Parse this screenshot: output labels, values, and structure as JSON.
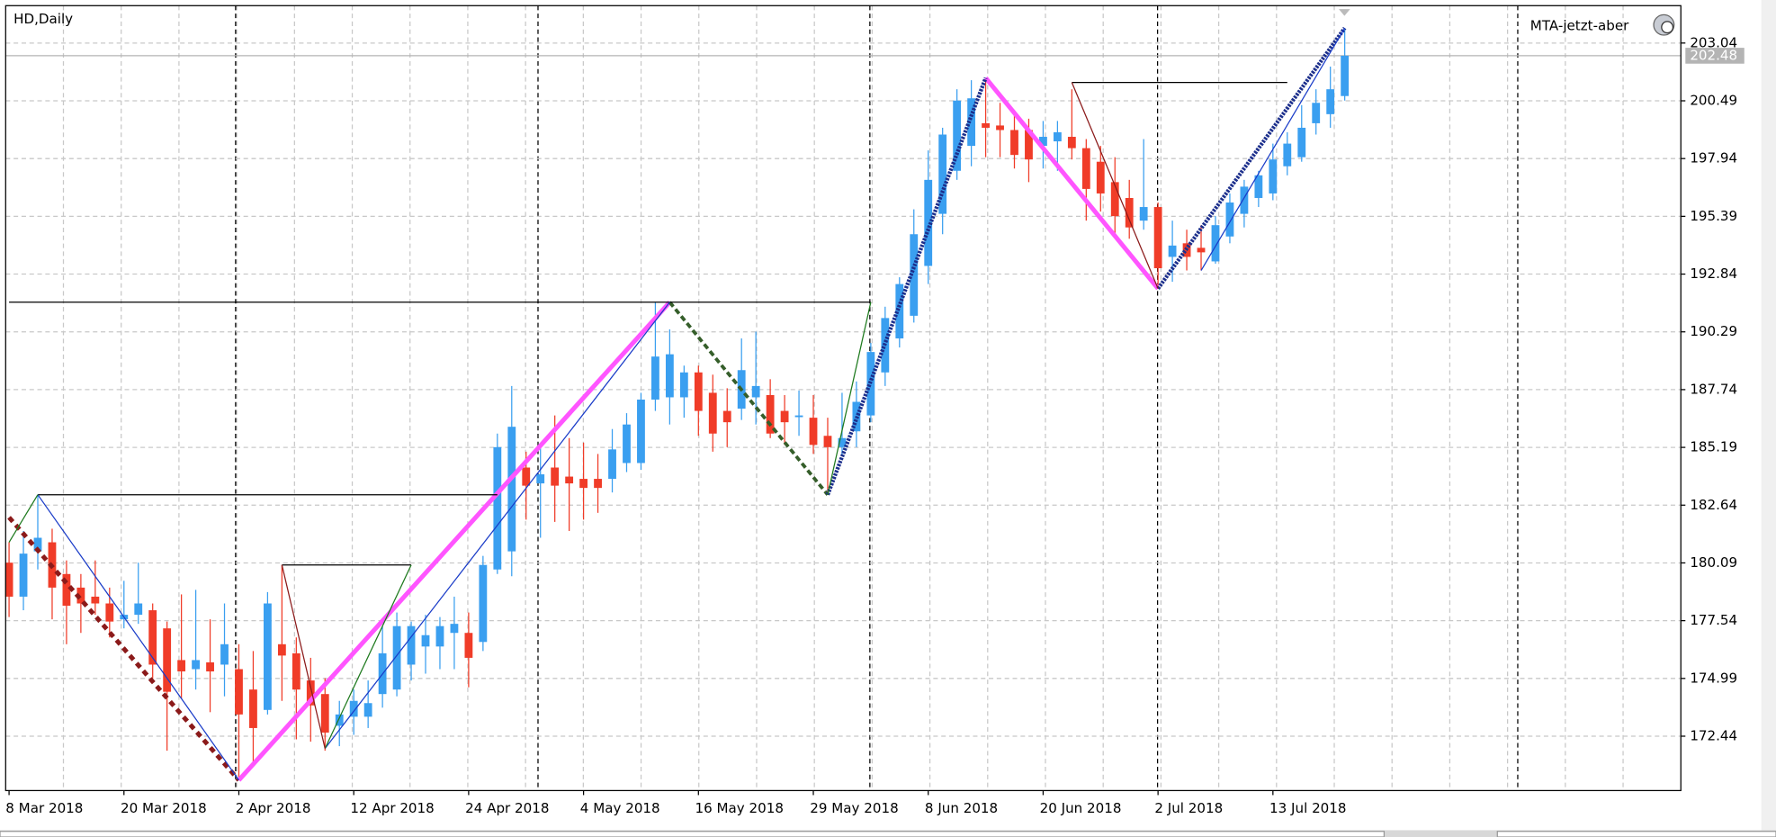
{
  "chart_data": {
    "type": "candlestick",
    "title": "HD,Daily",
    "indicator": "MTA-jetzt-aber",
    "categories": [
      "8 Mar 2018",
      null,
      null,
      null,
      null,
      null,
      null,
      null,
      "20 Mar 2018",
      null,
      null,
      null,
      null,
      null,
      null,
      null,
      "2 Apr 2018",
      null,
      null,
      null,
      null,
      null,
      null,
      null,
      "12 Apr 2018",
      null,
      null,
      null,
      null,
      null,
      null,
      null,
      "24 Apr 2018",
      null,
      null,
      null,
      null,
      null,
      null,
      null,
      "4 May 2018",
      null,
      null,
      null,
      null,
      null,
      null,
      null,
      "16 May 2018",
      null,
      null,
      null,
      null,
      null,
      null,
      null,
      "29 May 2018",
      null,
      null,
      null,
      null,
      null,
      null,
      null,
      "8 Jun 2018",
      null,
      null,
      null,
      null,
      null,
      null,
      null,
      "20 Jun 2018",
      null,
      null,
      null,
      null,
      null,
      null,
      null,
      "2 Jul 2018",
      null,
      null,
      null,
      null,
      null,
      null,
      null,
      "13 Jul 2018",
      null,
      null,
      null,
      null,
      null
    ],
    "open": [
      180.1,
      178.6,
      180.6,
      181.0,
      179.6,
      179.0,
      178.6,
      178.3,
      177.6,
      177.8,
      178.0,
      177.2,
      175.8,
      175.4,
      175.7,
      175.6,
      175.4,
      174.5,
      173.6,
      176.5,
      176.1,
      174.9,
      174.3,
      172.9,
      173.3,
      173.3,
      174.3,
      174.5,
      175.6,
      176.4,
      176.4,
      177.0,
      177.0,
      176.6,
      179.8,
      180.6,
      184.3,
      183.6,
      184.3,
      183.9,
      183.8,
      183.8,
      183.8,
      184.5,
      184.5,
      187.3,
      187.4,
      187.4,
      188.5,
      187.6,
      186.8,
      186.9,
      187.4,
      187.5,
      186.8,
      186.6,
      186.5,
      185.7,
      185.2,
      185.9,
      186.6,
      188.5,
      190.0,
      191.0,
      193.2,
      195.5,
      197.4,
      198.5,
      199.5,
      199.4,
      199.2,
      199.2,
      198.5,
      198.7,
      198.9,
      198.4,
      197.8,
      196.9,
      196.2,
      195.2,
      195.8,
      193.6,
      194.2,
      194.0,
      193.4,
      194.5,
      195.5,
      196.2,
      196.4,
      197.6,
      198.0,
      199.5,
      199.9,
      200.7
    ],
    "high": [
      181.0,
      181.5,
      183.1,
      181.6,
      180.2,
      179.6,
      180.2,
      179.0,
      179.3,
      180.1,
      178.3,
      177.5,
      178.7,
      178.9,
      177.6,
      178.3,
      176.5,
      176.2,
      178.8,
      180.0,
      176.8,
      175.9,
      175.0,
      174.0,
      174.5,
      174.9,
      177.3,
      177.9,
      177.5,
      177.8,
      177.7,
      178.6,
      177.9,
      180.4,
      185.8,
      187.9,
      185.0,
      185.2,
      186.6,
      185.6,
      185.4,
      184.9,
      186.0,
      186.7,
      187.6,
      191.6,
      190.4,
      188.8,
      188.8,
      188.4,
      187.8,
      190.0,
      190.3,
      188.2,
      187.5,
      187.7,
      187.5,
      186.5,
      187.6,
      188.1,
      189.8,
      191.4,
      192.7,
      195.7,
      198.3,
      199.3,
      201.0,
      201.4,
      201.5,
      200.4,
      199.9,
      199.7,
      199.6,
      199.6,
      201.0,
      198.8,
      198.5,
      198.0,
      197.0,
      198.8,
      196.0,
      195.2,
      194.8,
      195.0,
      195.4,
      196.4,
      197.0,
      197.4,
      198.6,
      199.1,
      200.3,
      201.0,
      202.0,
      203.7
    ],
    "low": [
      177.7,
      178.0,
      179.8,
      177.6,
      176.5,
      177.0,
      177.8,
      176.8,
      177.2,
      177.4,
      175.0,
      171.8,
      174.1,
      174.5,
      173.5,
      174.2,
      170.5,
      171.3,
      173.4,
      174.0,
      172.3,
      172.2,
      171.8,
      172.0,
      172.5,
      172.8,
      173.7,
      174.2,
      174.9,
      175.2,
      175.4,
      175.4,
      174.6,
      176.2,
      179.6,
      179.5,
      182.0,
      181.2,
      181.9,
      181.5,
      182.0,
      182.3,
      183.2,
      184.1,
      184.2,
      186.8,
      186.2,
      186.5,
      185.7,
      185.0,
      185.2,
      186.4,
      186.2,
      185.6,
      185.3,
      185.7,
      184.9,
      183.1,
      184.8,
      185.2,
      186.3,
      187.9,
      189.6,
      190.7,
      192.4,
      194.6,
      197.0,
      197.6,
      198.0,
      198.0,
      197.5,
      196.9,
      197.5,
      197.4,
      197.9,
      195.2,
      195.6,
      194.6,
      194.4,
      194.8,
      192.2,
      192.5,
      193.0,
      193.0,
      193.3,
      194.2,
      194.9,
      195.8,
      196.1,
      197.2,
      197.8,
      199.0,
      199.3,
      200.5
    ],
    "close": [
      178.6,
      180.5,
      181.2,
      179.0,
      178.2,
      178.3,
      178.3,
      177.5,
      177.8,
      178.3,
      175.6,
      174.4,
      175.3,
      175.8,
      175.3,
      176.5,
      173.4,
      172.8,
      178.3,
      176.0,
      174.5,
      173.8,
      172.6,
      173.4,
      174.0,
      173.9,
      176.1,
      177.3,
      177.3,
      176.9,
      177.3,
      177.4,
      175.9,
      180.0,
      185.2,
      186.1,
      183.5,
      184.0,
      183.5,
      183.6,
      183.4,
      183.4,
      185.1,
      186.2,
      187.3,
      189.2,
      189.3,
      188.5,
      186.8,
      185.8,
      186.3,
      188.6,
      187.9,
      185.8,
      186.3,
      186.6,
      185.3,
      185.2,
      185.6,
      187.2,
      189.4,
      190.9,
      192.4,
      194.6,
      197.0,
      199.0,
      200.5,
      200.6,
      199.3,
      199.2,
      198.1,
      197.9,
      198.9,
      199.1,
      198.4,
      196.6,
      196.4,
      195.4,
      194.9,
      195.8,
      193.1,
      194.1,
      193.6,
      193.8,
      195.0,
      196.0,
      196.7,
      197.2,
      197.9,
      198.6,
      199.3,
      200.4,
      201.0,
      202.48
    ],
    "up_color": "#3a9ff0",
    "down_color": "#f03c28",
    "ylim": [
      170.04,
      204.69
    ],
    "yticks": [
      172.44,
      174.99,
      177.54,
      180.09,
      182.64,
      185.19,
      187.74,
      190.29,
      192.84,
      195.39,
      197.94,
      200.49,
      203.04
    ],
    "grid": true,
    "current_price": 202.48,
    "overlays": [
      {
        "color": "#8b1a1a",
        "width": 4,
        "dash": "5 4",
        "points": [
          [
            0,
            182.1
          ],
          [
            16,
            170.5
          ]
        ]
      },
      {
        "color": "#ff55ff",
        "width": 4,
        "points": [
          [
            16,
            170.5
          ],
          [
            46,
            191.6
          ]
        ]
      },
      {
        "color": "#ff55ff",
        "width": 4,
        "points": [
          [
            68,
            201.5
          ],
          [
            80,
            192.2
          ]
        ]
      },
      {
        "color": "#355e2a",
        "width": 3,
        "dash": "5 3",
        "points": [
          [
            46,
            191.6
          ],
          [
            57,
            183.1
          ]
        ]
      },
      {
        "color": "#1c2f8c",
        "width": 3.5,
        "dash": "2 1",
        "points": [
          [
            57,
            183.1
          ],
          [
            68,
            201.5
          ]
        ]
      },
      {
        "color": "#1c2f8c",
        "width": 3.5,
        "dash": "2 1",
        "points": [
          [
            80,
            192.2
          ],
          [
            93,
            203.7
          ]
        ]
      },
      {
        "color": "#000000",
        "width": 1,
        "points": [
          [
            2,
            183.1
          ],
          [
            34,
            183.1
          ]
        ]
      },
      {
        "color": "#000000",
        "width": 1,
        "points": [
          [
            19,
            180.0
          ],
          [
            28,
            180.0
          ]
        ]
      },
      {
        "color": "#000000",
        "width": 1,
        "points": [
          [
            0,
            191.6
          ],
          [
            60,
            191.6
          ]
        ]
      },
      {
        "color": "#000000",
        "width": 1,
        "points": [
          [
            74,
            201.3
          ],
          [
            89,
            201.3
          ]
        ]
      },
      {
        "color": "#1a3cc8",
        "width": 1,
        "points": [
          [
            2,
            183.1
          ],
          [
            16,
            170.5
          ]
        ]
      },
      {
        "color": "#1a3cc8",
        "width": 1,
        "points": [
          [
            22,
            171.9
          ],
          [
            46,
            191.6
          ]
        ]
      },
      {
        "color": "#1a3cc8",
        "width": 1,
        "points": [
          [
            83,
            193.0
          ],
          [
            93,
            203.7
          ]
        ]
      },
      {
        "color": "#1e7a1e",
        "width": 1,
        "points": [
          [
            0,
            181.0
          ],
          [
            2,
            183.1
          ]
        ]
      },
      {
        "color": "#1e7a1e",
        "width": 1,
        "points": [
          [
            22,
            171.9
          ],
          [
            28,
            180.0
          ]
        ]
      },
      {
        "color": "#1e7a1e",
        "width": 1,
        "points": [
          [
            57,
            183.1
          ],
          [
            60,
            191.6
          ]
        ]
      },
      {
        "color": "#8b1a1a",
        "width": 1,
        "points": [
          [
            19,
            180.0
          ],
          [
            22,
            171.9
          ]
        ]
      },
      {
        "color": "#8b1a1a",
        "width": 1,
        "points": [
          [
            74,
            201.3
          ],
          [
            80,
            192.2
          ]
        ]
      }
    ]
  }
}
